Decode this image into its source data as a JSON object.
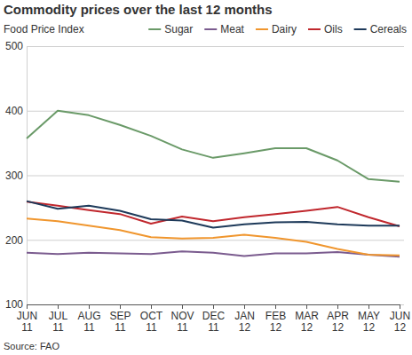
{
  "chart_data": {
    "type": "line",
    "title": "Commodity prices over the last 12 months",
    "subtitle": "Food Price Index",
    "source": "Source: FAO",
    "categories": [
      "JUN 11",
      "JUL 11",
      "AUG 11",
      "SEP 11",
      "OCT 11",
      "NOV 11",
      "DEC 11",
      "JAN 12",
      "FEB 12",
      "MAR 12",
      "APR 12",
      "MAY 12",
      "JUN 12"
    ],
    "series": [
      {
        "name": "Sugar",
        "color": "#6a9a68",
        "values": [
          357,
          400,
          393,
          378,
          361,
          340,
          327,
          334,
          342,
          342,
          323,
          294,
          290
        ]
      },
      {
        "name": "Meat",
        "color": "#7b5c8f",
        "values": [
          180,
          178,
          180,
          179,
          178,
          182,
          180,
          175,
          179,
          179,
          181,
          177,
          174
        ]
      },
      {
        "name": "Dairy",
        "color": "#f0962e",
        "values": [
          233,
          229,
          222,
          215,
          204,
          202,
          203,
          208,
          203,
          197,
          186,
          177,
          176
        ]
      },
      {
        "name": "Oils",
        "color": "#c0272d",
        "values": [
          259,
          253,
          246,
          240,
          225,
          236,
          229,
          235,
          240,
          245,
          251,
          235,
          221
        ]
      },
      {
        "name": "Cereals",
        "color": "#1e3a5a",
        "values": [
          260,
          248,
          253,
          245,
          232,
          230,
          219,
          224,
          227,
          228,
          224,
          222,
          222
        ]
      }
    ],
    "ylim": [
      100,
      500
    ],
    "yticks": [
      100,
      200,
      300,
      400,
      500
    ],
    "grid": true,
    "legend": "top"
  }
}
